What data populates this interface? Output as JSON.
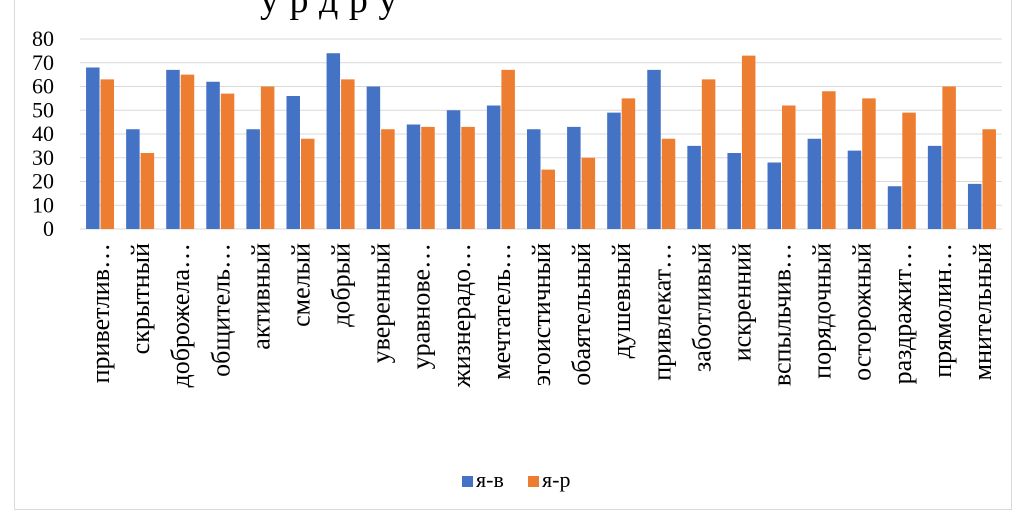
{
  "page": {
    "title_fragment": "у    р       д          р у"
  },
  "chart_data": {
    "type": "bar",
    "title": "",
    "xlabel": "",
    "ylabel": "",
    "ylim": [
      0,
      80
    ],
    "yticks": [
      0,
      10,
      20,
      30,
      40,
      50,
      60,
      70,
      80
    ],
    "grid": true,
    "legend": "bottom",
    "colors": {
      "я-в": "#4472C4",
      "я-р": "#ED7D31",
      "grid": "#d9d9d9"
    },
    "categories": [
      "приветлив…",
      "скрытный",
      "доброжела…",
      "общитель…",
      "активный",
      "смелый",
      "добрый",
      "уверенный",
      "уравнове…",
      "жизнерадо…",
      "мечтатель…",
      "эгоистичный",
      "обаятельный",
      "душевный",
      "привлекат…",
      "заботливый",
      "искренний",
      "вспыльчив…",
      "порядочный",
      "осторожный",
      "раздражит…",
      "прямолин…",
      "мнительный"
    ],
    "series": [
      {
        "name": "я-в",
        "values": [
          68,
          42,
          67,
          62,
          42,
          56,
          74,
          60,
          44,
          50,
          52,
          42,
          43,
          49,
          67,
          35,
          32,
          28,
          38,
          33,
          18,
          35,
          19
        ]
      },
      {
        "name": "я-р",
        "values": [
          63,
          32,
          65,
          57,
          60,
          38,
          63,
          42,
          43,
          43,
          67,
          25,
          30,
          55,
          38,
          63,
          73,
          52,
          58,
          55,
          49,
          60,
          42
        ]
      }
    ]
  }
}
